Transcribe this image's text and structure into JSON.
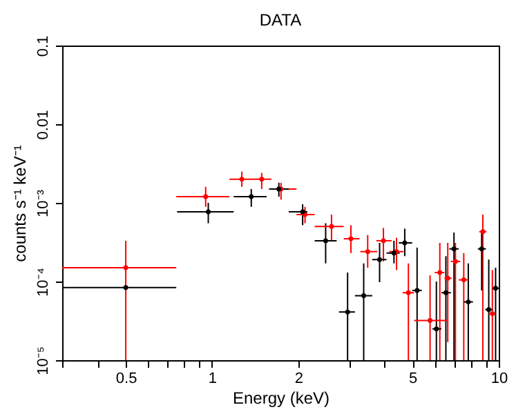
{
  "chart_data": {
    "type": "scatter",
    "title": "DATA",
    "xlabel": "Energy (keV)",
    "ylabel": "counts s⁻¹ keV⁻¹",
    "log": "xy",
    "grid": false,
    "marker": "none",
    "xlim": [
      0.3,
      10
    ],
    "ylim": [
      1e-05,
      0.1
    ],
    "xticks": [
      {
        "value": 0.3,
        "label": null
      },
      {
        "value": 0.4,
        "label": null
      },
      0.5,
      {
        "value": 0.6,
        "label": null
      },
      {
        "value": 0.7,
        "label": null
      },
      {
        "value": 0.8,
        "label": null
      },
      {
        "value": 0.9,
        "label": null
      },
      1,
      2,
      {
        "value": 3,
        "label": null
      },
      {
        "value": 4,
        "label": null
      },
      5,
      {
        "value": 6,
        "label": null
      },
      {
        "value": 7,
        "label": null
      },
      {
        "value": 8,
        "label": null
      },
      {
        "value": 9,
        "label": null
      },
      10
    ],
    "yticks": [
      {
        "value": 1e-05,
        "label": "10⁻⁵"
      },
      {
        "value": 0.0001,
        "label": "10⁻⁴"
      },
      {
        "value": 0.001,
        "label": "10⁻³"
      },
      0.01,
      0.1
    ],
    "series": [
      {
        "color": "#ff0000",
        "x": [
          0.5,
          0.95,
          1.27,
          1.49,
          1.74,
          2.11,
          2.61,
          3.05,
          3.49,
          3.96,
          4.4,
          4.84,
          5.76,
          6.23,
          6.64,
          7.06,
          7.55,
          8.8,
          9.5
        ],
        "values": [
          0.00015,
          0.0012,
          0.002,
          0.002,
          0.0015,
          0.00071,
          0.0005,
          0.00035,
          0.00024,
          0.00033,
          0.00024,
          7.2e-05,
          3.2e-05,
          0.00013,
          0.00011,
          0.00018,
          0.000105,
          0.00043,
          3.9e-05
        ],
        "errors": [
          [
            1e-05,
            0.00033
          ],
          [
            0.00089,
            0.0016
          ],
          [
            0.0016,
            0.0025
          ],
          [
            0.0015,
            0.0024
          ],
          [
            0.0011,
            0.0018
          ],
          [
            0.00055,
            0.00089
          ],
          [
            0.00033,
            0.00071
          ],
          [
            0.00023,
            0.00052
          ],
          [
            0.00015,
            0.00039
          ],
          [
            0.00018,
            0.00048
          ],
          [
            0.00014,
            0.00036
          ],
          [
            1e-05,
            0.00017
          ],
          [
            1e-05,
            0.00012
          ],
          [
            1e-05,
            0.00031
          ],
          [
            1.7e-05,
            0.00031
          ],
          [
            1e-05,
            0.00031
          ],
          [
            1e-05,
            0.00023
          ],
          [
            1e-05,
            0.00071
          ],
          [
            1e-05,
            0.00014
          ]
        ],
        "xerrors": [
          [
            0.3,
            0.75
          ],
          [
            0.75,
            1.15
          ],
          [
            1.15,
            1.38
          ],
          [
            1.38,
            1.61
          ],
          [
            1.61,
            1.97
          ],
          [
            1.97,
            2.28
          ],
          [
            2.28,
            2.88
          ],
          [
            2.88,
            3.27
          ],
          [
            3.29,
            3.77
          ],
          [
            3.74,
            4.23
          ],
          [
            4.15,
            4.66
          ],
          [
            4.62,
            5.07
          ],
          [
            5.07,
            6.6
          ],
          [
            5.98,
            6.46
          ],
          [
            6.46,
            6.85
          ],
          [
            6.81,
            7.34
          ],
          [
            7.25,
            7.83
          ],
          [
            8.55,
            9.06
          ],
          [
            9.23,
            9.75
          ]
        ]
      },
      {
        "color": "#000000",
        "x": [
          0.5,
          0.97,
          1.37,
          1.71,
          2.07,
          2.49,
          2.97,
          3.38,
          3.84,
          4.31,
          4.7,
          5.19,
          6.06,
          6.54,
          6.98,
          7.83,
          8.72,
          9.23,
          9.75
        ],
        "values": [
          8.4e-05,
          0.00077,
          0.0012,
          0.0015,
          0.00077,
          0.00033,
          4.1e-05,
          6.6e-05,
          0.00019,
          0.00023,
          0.00031,
          7.7e-05,
          2.5e-05,
          7.2e-05,
          0.00026,
          5.5e-05,
          0.00026,
          4.4e-05,
          8.2e-05
        ],
        "errors": [
          null,
          [
            0.00055,
            0.001
          ],
          [
            0.00089,
            0.0015
          ],
          [
            0.0012,
            0.0018
          ],
          [
            0.00052,
            0.00096
          ],
          [
            0.00017,
            0.00055
          ],
          [
            1e-05,
            0.00013
          ],
          [
            1e-05,
            0.00017
          ],
          [
            9.8e-05,
            0.00031
          ],
          [
            0.00017,
            0.00033
          ],
          [
            0.00021,
            0.00047
          ],
          [
            1e-05,
            0.00027
          ],
          [
            1e-05,
            0.0001
          ],
          [
            1e-05,
            0.00021
          ],
          [
            1e-05,
            0.00042
          ],
          [
            1e-05,
            0.00017
          ],
          [
            7.7e-05,
            0.00042
          ],
          [
            1e-05,
            0.00019
          ],
          [
            1e-05,
            0.00015
          ]
        ],
        "xerrors": [
          [
            0.3,
            0.75
          ],
          [
            0.755,
            1.19
          ],
          [
            1.19,
            1.55
          ],
          [
            1.58,
            1.85
          ],
          [
            1.85,
            2.15
          ],
          [
            2.28,
            2.72
          ],
          [
            2.77,
            3.15
          ],
          [
            3.15,
            3.62
          ],
          [
            3.62,
            4.06
          ],
          [
            4.06,
            4.51
          ],
          [
            4.48,
            4.99
          ],
          [
            4.99,
            5.39
          ],
          [
            5.87,
            6.31
          ],
          [
            6.31,
            6.81
          ],
          [
            6.72,
            7.25
          ],
          [
            7.55,
            8.13
          ],
          [
            8.46,
            9.02
          ],
          [
            8.97,
            9.5
          ],
          [
            9.5,
            10
          ]
        ]
      }
    ]
  }
}
